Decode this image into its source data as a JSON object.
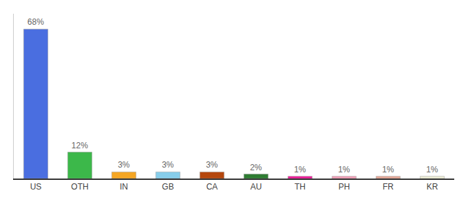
{
  "chart_data": {
    "type": "bar",
    "categories": [
      "US",
      "OTH",
      "IN",
      "GB",
      "CA",
      "AU",
      "TH",
      "PH",
      "FR",
      "KR"
    ],
    "values": [
      68,
      12,
      3,
      3,
      3,
      2,
      1,
      1,
      1,
      1
    ],
    "value_labels": [
      "68%",
      "12%",
      "3%",
      "3%",
      "3%",
      "2%",
      "1%",
      "1%",
      "1%",
      "1%"
    ],
    "colors": [
      "#4a6ee0",
      "#3cb84a",
      "#f5a623",
      "#87ceeb",
      "#b5470d",
      "#2e7d32",
      "#f01899",
      "#f4a0b8",
      "#e8a898",
      "#f0f0d8"
    ],
    "ylim": [
      0,
      75
    ],
    "data_labels": true,
    "tick_labels": "x",
    "grid": false
  }
}
